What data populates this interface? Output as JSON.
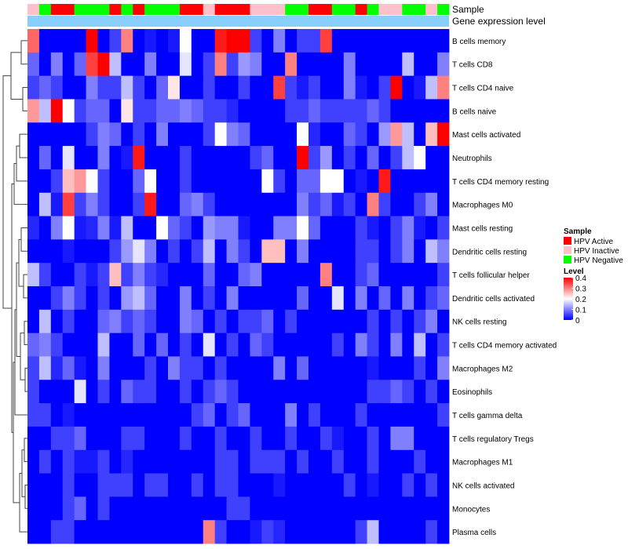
{
  "chart_data": {
    "type": "heatmap",
    "annotation_rows": [
      "Sample",
      "Gene expression level"
    ],
    "row_labels": [
      "B cells memory",
      "T cells CD8",
      "T cells CD4 naive",
      "B cells naive",
      "Mast cells activated",
      "Neutrophils",
      "T cells CD4 memory resting",
      "Macrophages M0",
      "Mast cells resting",
      "Dendritic cells resting",
      "T cells follicular helper",
      "Dendritic cells activated",
      "NK cells resting",
      "T cells CD4 memory activated",
      "Macrophages M2",
      "Eosinophils",
      "T cells gamma delta",
      "T cells regulatory  Tregs",
      "Macrophages M1",
      "NK cells activated",
      "Monocytes",
      "Plasma cells"
    ],
    "n_columns": 36,
    "sample_groups": [
      "HPV Inactive",
      "HPV Negative",
      "HPV Active",
      "HPV Active",
      "HPV Negative",
      "HPV Negative",
      "HPV Negative",
      "HPV Active",
      "HPV Negative",
      "HPV Active",
      "HPV Negative",
      "HPV Negative",
      "HPV Negative",
      "HPV Active",
      "HPV Active",
      "HPV Inactive",
      "HPV Active",
      "HPV Active",
      "HPV Active",
      "HPV Inactive",
      "HPV Inactive",
      "HPV Inactive",
      "HPV Negative",
      "HPV Negative",
      "HPV Active",
      "HPV Active",
      "HPV Negative",
      "HPV Negative",
      "HPV Active",
      "HPV Negative",
      "HPV Inactive",
      "HPV Inactive",
      "HPV Negative",
      "HPV Negative",
      "HPV Inactive",
      "HPV Negative"
    ],
    "legend": {
      "sample_title": "Sample",
      "sample_entries": [
        {
          "label": "HPV Active",
          "color": "#ff0000"
        },
        {
          "label": "HPV Inactive",
          "color": "#ffc0cb"
        },
        {
          "label": "HPV Negative",
          "color": "#00ff00"
        }
      ],
      "level_title": "Level",
      "level_ticks": [
        "0.4",
        "0.3",
        "0.2",
        "0.1",
        "0"
      ],
      "level_range": [
        0,
        0.4
      ],
      "colors": {
        "low": "#0000ff",
        "mid": "#ffffff",
        "high": "#ff0000"
      }
    },
    "expression_bar_color": "#87cefa",
    "values": [
      [
        0.32,
        0,
        0,
        0,
        0,
        0.4,
        0,
        0.05,
        0.3,
        0,
        0.02,
        0,
        0.02,
        0.2,
        0,
        0,
        0.38,
        0.4,
        0.4,
        0.05,
        0,
        0.1,
        0,
        0.05,
        0.05,
        0.35,
        0,
        0,
        0,
        0,
        0,
        0,
        0,
        0,
        0,
        0
      ],
      [
        0.08,
        0,
        0.1,
        0,
        0.08,
        0.35,
        0.4,
        0.15,
        0,
        0,
        0.1,
        0,
        0,
        0.18,
        0,
        0.05,
        0.3,
        0.05,
        0.12,
        0.1,
        0,
        0,
        0.3,
        0,
        0,
        0,
        0,
        0.1,
        0,
        0,
        0,
        0,
        0.15,
        0,
        0,
        0.1
      ],
      [
        0.05,
        0.08,
        0.05,
        0,
        0,
        0.1,
        0.05,
        0.05,
        0.15,
        0.05,
        0,
        0.08,
        0.22,
        0,
        0,
        0.05,
        0,
        0,
        0.05,
        0,
        0,
        0.35,
        0.05,
        0.02,
        0.05,
        0,
        0,
        0.1,
        0.02,
        0,
        0.05,
        0.4,
        0,
        0.02,
        0.15,
        0.3
      ],
      [
        0.28,
        0.15,
        0.4,
        0.2,
        0.05,
        0.08,
        0.08,
        0,
        0.22,
        0.05,
        0.05,
        0.08,
        0.08,
        0.1,
        0.08,
        0.05,
        0.05,
        0.03,
        0,
        0,
        0,
        0,
        0.05,
        0.05,
        0.08,
        0.05,
        0.05,
        0.05,
        0.05,
        0.08,
        0.05,
        0,
        0,
        0,
        0,
        0
      ],
      [
        0,
        0,
        0,
        0,
        0,
        0.05,
        0.1,
        0.08,
        0,
        0.05,
        0,
        0.1,
        0,
        0,
        0,
        0.05,
        0.2,
        0.1,
        0.08,
        0,
        0,
        0,
        0,
        0.2,
        0.03,
        0,
        0,
        0.08,
        0.05,
        0,
        0.12,
        0.28,
        0.15,
        0,
        0.25,
        0.4
      ],
      [
        0,
        0.08,
        0,
        0.18,
        0,
        0,
        0.1,
        0,
        0.02,
        0.38,
        0,
        0,
        0,
        0.05,
        0,
        0,
        0,
        0,
        0,
        0.05,
        0.08,
        0,
        0,
        0.4,
        0.05,
        0.12,
        0,
        0.05,
        0,
        0.08,
        0,
        0.05,
        0.15,
        0.2,
        0,
        0
      ],
      [
        0,
        0,
        0.05,
        0.25,
        0.28,
        0.2,
        0.05,
        0,
        0,
        0.08,
        0.2,
        0,
        0,
        0.05,
        0,
        0,
        0,
        0,
        0,
        0,
        0.2,
        0.05,
        0,
        0.08,
        0.08,
        0.2,
        0.2,
        0,
        0.02,
        0,
        0.38,
        0,
        0,
        0,
        0,
        0
      ],
      [
        0,
        0.15,
        0.02,
        0.35,
        0.05,
        0.1,
        0.05,
        0,
        0,
        0.05,
        0.38,
        0,
        0,
        0.08,
        0.1,
        0.05,
        0,
        0,
        0,
        0,
        0,
        0,
        0,
        0.1,
        0.05,
        0.08,
        0.02,
        0.05,
        0,
        0.3,
        0.05,
        0,
        0,
        0.05,
        0.1,
        0
      ],
      [
        0.03,
        0,
        0.1,
        0.2,
        0.02,
        0.03,
        0.1,
        0.02,
        0.15,
        0,
        0,
        0.2,
        0.08,
        0.05,
        0,
        0.12,
        0.1,
        0.1,
        0.02,
        0,
        0,
        0.1,
        0.1,
        0.2,
        0.08,
        0,
        0,
        0,
        0.05,
        0.02,
        0,
        0.05,
        0.1,
        0.02,
        0,
        0.05
      ],
      [
        0,
        0,
        0,
        0.02,
        0,
        0,
        0,
        0.05,
        0.12,
        0.18,
        0.1,
        0,
        0.05,
        0,
        0.05,
        0.15,
        0,
        0.1,
        0.05,
        0,
        0.25,
        0.25,
        0,
        0.1,
        0,
        0,
        0,
        0,
        0.05,
        0.05,
        0,
        0.05,
        0.1,
        0,
        0.15,
        0.1
      ],
      [
        0.15,
        0.05,
        0,
        0,
        0.05,
        0.02,
        0.05,
        0.25,
        0.05,
        0.1,
        0.05,
        0.03,
        0,
        0,
        0,
        0.08,
        0,
        0,
        0.08,
        0.1,
        0,
        0,
        0,
        0,
        0,
        0.3,
        0,
        0,
        0.05,
        0.08,
        0,
        0,
        0,
        0,
        0,
        0.05
      ],
      [
        0,
        0,
        0.05,
        0.1,
        0.05,
        0,
        0.05,
        0,
        0.12,
        0.15,
        0.08,
        0,
        0,
        0.1,
        0,
        0.05,
        0,
        0.1,
        0,
        0,
        0,
        0,
        0,
        0.08,
        0,
        0,
        0.18,
        0,
        0.1,
        0,
        0.08,
        0,
        0.1,
        0,
        0.05,
        0.08
      ],
      [
        0,
        0.15,
        0,
        0.05,
        0,
        0,
        0.08,
        0.1,
        0.05,
        0.08,
        0.05,
        0,
        0,
        0.1,
        0.08,
        0,
        0.05,
        0,
        0.05,
        0.05,
        0.08,
        0,
        0.05,
        0,
        0,
        0,
        0,
        0,
        0,
        0.05,
        0,
        0.05,
        0,
        0.05,
        0.1,
        0
      ],
      [
        0.08,
        0.1,
        0.05,
        0,
        0,
        0,
        0.15,
        0,
        0,
        0.08,
        0,
        0.08,
        0,
        0.05,
        0,
        0.18,
        0,
        0.05,
        0,
        0.08,
        0.05,
        0,
        0,
        0,
        0,
        0,
        0.05,
        0,
        0.1,
        0.05,
        0,
        0.1,
        0,
        0.15,
        0,
        0.05
      ],
      [
        0.05,
        0.15,
        0.03,
        0.08,
        0.02,
        0,
        0.1,
        0,
        0,
        0,
        0.05,
        0,
        0.1,
        0.05,
        0.05,
        0,
        0.05,
        0,
        0,
        0,
        0,
        0.1,
        0,
        0.08,
        0,
        0,
        0,
        0,
        0,
        0.02,
        0,
        0,
        0,
        0.05,
        0,
        0.1
      ],
      [
        0.05,
        0,
        0,
        0,
        0.18,
        0,
        0.05,
        0,
        0.08,
        0.05,
        0.05,
        0,
        0,
        0.05,
        0,
        0.05,
        0.08,
        0.05,
        0,
        0,
        0,
        0,
        0,
        0,
        0,
        0,
        0,
        0,
        0,
        0.05,
        0.05,
        0.08,
        0.05,
        0,
        0.05,
        0
      ],
      [
        0.05,
        0.05,
        0,
        0.02,
        0,
        0,
        0,
        0,
        0,
        0,
        0,
        0,
        0,
        0,
        0.05,
        0.08,
        0,
        0.05,
        0.08,
        0,
        0,
        0,
        0.1,
        0,
        0.05,
        0,
        0,
        0,
        0.05,
        0,
        0,
        0,
        0,
        0,
        0,
        0.05
      ],
      [
        0,
        0,
        0.05,
        0.05,
        0.08,
        0,
        0,
        0,
        0.05,
        0.05,
        0,
        0,
        0,
        0.05,
        0,
        0,
        0.05,
        0,
        0,
        0.05,
        0,
        0,
        0.05,
        0,
        0,
        0.05,
        0.02,
        0,
        0,
        0.05,
        0,
        0.1,
        0.1,
        0,
        0,
        0
      ],
      [
        0,
        0.05,
        0,
        0.05,
        0.02,
        0.02,
        0.05,
        0,
        0.03,
        0,
        0,
        0,
        0,
        0,
        0,
        0,
        0.05,
        0.05,
        0,
        0.05,
        0.05,
        0.05,
        0,
        0.05,
        0,
        0,
        0.05,
        0,
        0,
        0.05,
        0,
        0,
        0,
        0.05,
        0,
        0
      ],
      [
        0,
        0,
        0,
        0.05,
        0,
        0,
        0.05,
        0.05,
        0.05,
        0,
        0.05,
        0.05,
        0,
        0,
        0.05,
        0,
        0.05,
        0.05,
        0,
        0,
        0,
        0.02,
        0,
        0,
        0,
        0,
        0,
        0.05,
        0,
        0.02,
        0,
        0,
        0.05,
        0,
        0.05,
        0
      ],
      [
        0,
        0,
        0,
        0.05,
        0.08,
        0,
        0.05,
        0,
        0,
        0,
        0,
        0,
        0,
        0,
        0,
        0,
        0,
        0.05,
        0.05,
        0,
        0,
        0,
        0,
        0,
        0,
        0,
        0,
        0,
        0,
        0,
        0,
        0,
        0,
        0,
        0,
        0
      ],
      [
        0,
        0,
        0.05,
        0.05,
        0,
        0,
        0,
        0,
        0,
        0,
        0,
        0,
        0,
        0,
        0,
        0.3,
        0.05,
        0,
        0,
        0.02,
        0.05,
        0.03,
        0,
        0,
        0,
        0,
        0,
        0,
        0.05,
        0.15,
        0,
        0,
        0,
        0,
        0.05,
        0
      ]
    ]
  }
}
